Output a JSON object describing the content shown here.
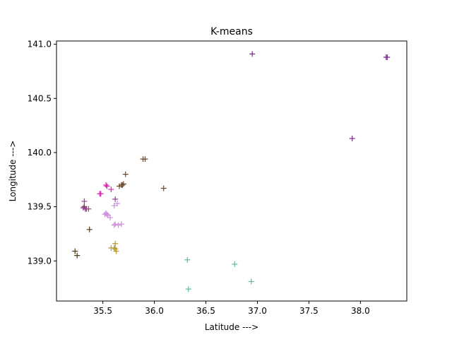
{
  "chart_data": {
    "type": "scatter",
    "title": "K-means",
    "xlabel": "Latitude --->",
    "ylabel": "Longitude --->",
    "xlim": [
      35.05,
      38.45
    ],
    "ylim": [
      138.63,
      141.03
    ],
    "xticks": [
      "35.5",
      "36.0",
      "36.5",
      "37.0",
      "37.5",
      "38.0"
    ],
    "xtick_values": [
      35.5,
      36.0,
      36.5,
      37.0,
      37.5,
      38.0
    ],
    "yticks": [
      "139.0",
      "139.5",
      "140.0",
      "140.5",
      "141.0"
    ],
    "ytick_values": [
      139.0,
      139.5,
      140.0,
      140.5,
      141.0
    ],
    "marker": "+",
    "grid": false,
    "series": [
      {
        "color": "#7b2d8e",
        "points": [
          [
            36.95,
            140.91
          ],
          [
            38.26,
            140.88
          ],
          [
            38.25,
            140.88
          ],
          [
            37.92,
            140.13
          ]
        ]
      },
      {
        "color": "#6b4a2e",
        "points": [
          [
            35.89,
            139.94
          ],
          [
            35.91,
            139.94
          ],
          [
            35.72,
            139.8
          ],
          [
            35.68,
            139.7
          ],
          [
            35.69,
            139.7
          ],
          [
            35.7,
            139.71
          ],
          [
            35.66,
            139.69
          ],
          [
            36.09,
            139.67
          ],
          [
            35.34,
            139.48
          ],
          [
            35.32,
            139.5
          ]
        ]
      },
      {
        "color": "#e020b0",
        "points": [
          [
            35.53,
            139.7
          ],
          [
            35.54,
            139.69
          ],
          [
            35.47,
            139.62
          ],
          [
            35.48,
            139.62
          ],
          [
            35.58,
            139.66
          ]
        ]
      },
      {
        "color": "#9b3a9b",
        "points": [
          [
            35.32,
            139.55
          ],
          [
            35.31,
            139.49
          ],
          [
            35.33,
            139.48
          ],
          [
            35.36,
            139.48
          ],
          [
            35.62,
            139.57
          ]
        ]
      },
      {
        "color": "#d08ee0",
        "points": [
          [
            35.64,
            139.53
          ],
          [
            35.61,
            139.51
          ],
          [
            35.53,
            139.44
          ],
          [
            35.54,
            139.43
          ],
          [
            35.52,
            139.43
          ],
          [
            35.55,
            139.42
          ],
          [
            35.57,
            139.4
          ],
          [
            35.62,
            139.34
          ],
          [
            35.65,
            139.33
          ],
          [
            35.68,
            139.34
          ],
          [
            35.61,
            139.33
          ]
        ]
      },
      {
        "color": "#4a3a1a",
        "points": [
          [
            35.37,
            139.29
          ],
          [
            35.23,
            139.09
          ],
          [
            35.25,
            139.05
          ]
        ]
      },
      {
        "color": "#b89a2a",
        "points": [
          [
            35.62,
            139.16
          ],
          [
            35.58,
            139.12
          ],
          [
            35.62,
            139.11
          ],
          [
            35.63,
            139.09
          ],
          [
            35.61,
            139.12
          ]
        ]
      },
      {
        "color": "#66bb99",
        "points": [
          [
            36.32,
            139.01
          ],
          [
            36.78,
            138.97
          ],
          [
            36.94,
            138.81
          ],
          [
            36.33,
            138.74
          ]
        ]
      }
    ]
  }
}
